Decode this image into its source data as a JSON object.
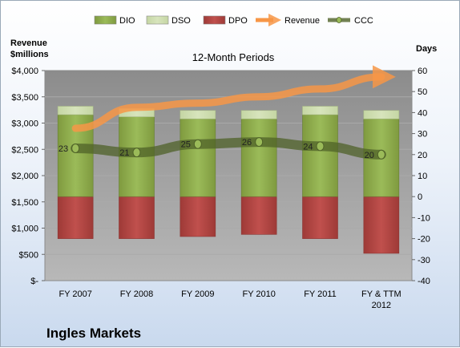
{
  "chart_data": {
    "type": "bar",
    "subtitle": "12-Month Periods",
    "company": "Ingles Markets",
    "y_left_label_line1": "Revenue",
    "y_left_label_line2": "$millions",
    "y_right_label": "Days",
    "categories": [
      "FY 2007",
      "FY 2008",
      "FY 2009",
      "FY 2010",
      "FY 2011",
      "FY & TTM 2012"
    ],
    "y_left_ticks": [
      "$-",
      "$500",
      "$1,000",
      "$1,500",
      "$2,000",
      "$2,500",
      "$3,000",
      "$3,500",
      "$4,000"
    ],
    "y_left_lim": [
      0,
      4000
    ],
    "y_right_ticks": [
      "-40",
      "-30",
      "-20",
      "-10",
      "0",
      "10",
      "20",
      "30",
      "40",
      "50",
      "60"
    ],
    "y_right_lim": [
      -40,
      60
    ],
    "legend_position": "top",
    "series": [
      {
        "name": "DIO",
        "axis": "right",
        "kind": "stacked-bar",
        "values": [
          39,
          38,
          37,
          37,
          39,
          37
        ]
      },
      {
        "name": "DSO",
        "axis": "right",
        "kind": "stacked-bar",
        "values": [
          4,
          4,
          4,
          4,
          4,
          4
        ]
      },
      {
        "name": "DPO",
        "axis": "right",
        "kind": "negative-bar",
        "values": [
          -20,
          -20,
          -19,
          -18,
          -20,
          -27
        ]
      },
      {
        "name": "Revenue",
        "axis": "left",
        "kind": "line",
        "values": [
          2900,
          3300,
          3380,
          3500,
          3650,
          3880
        ]
      },
      {
        "name": "CCC",
        "axis": "right",
        "kind": "line",
        "values": [
          23,
          21,
          25,
          26,
          24,
          20
        ]
      }
    ],
    "data_labels": [
      "23",
      "21",
      "25",
      "26",
      "24",
      "20"
    ],
    "colors": {
      "DIO": "#9bbb59",
      "DSO": "#d7e4bc",
      "DPO": "#c0504d",
      "Revenue": "#f79646",
      "CCC": "#4f6228"
    }
  }
}
